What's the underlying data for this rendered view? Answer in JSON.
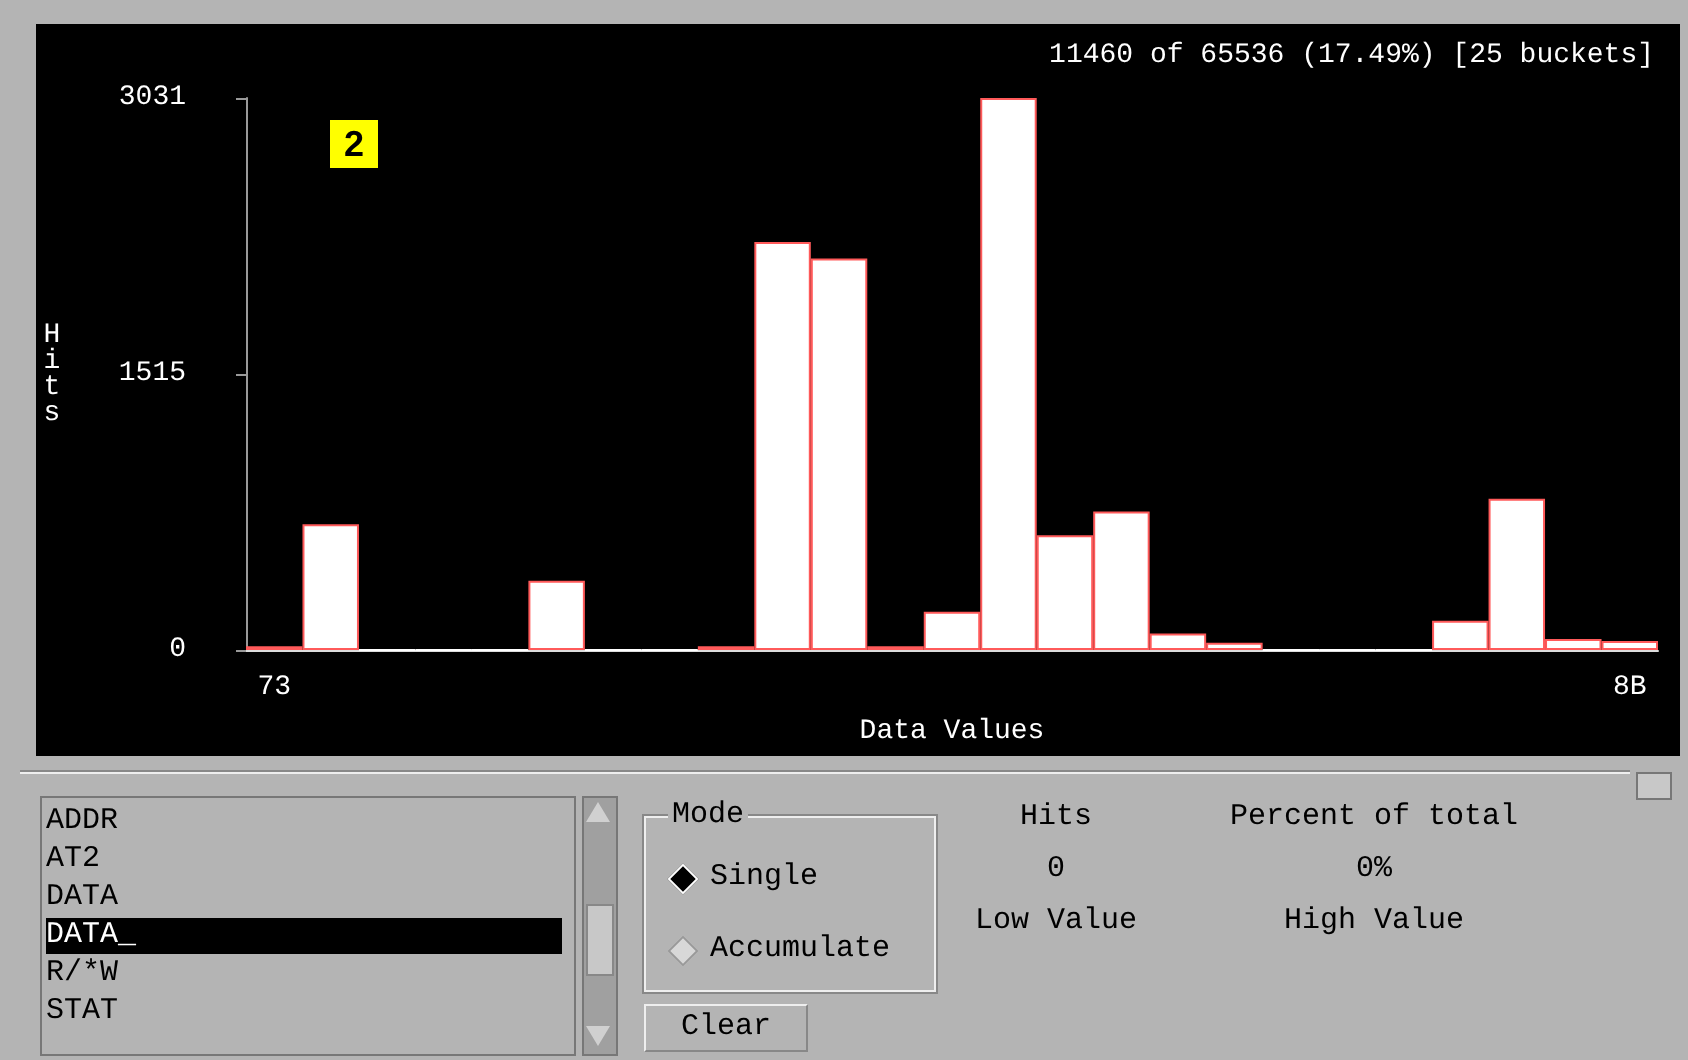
{
  "chart_data": [
    {
      "type": "bar",
      "title": "11460 of 65536 (17.49%) [25 buckets]",
      "xlabel": "Data Values",
      "ylabel": "Hits",
      "categories": [
        "73",
        null,
        null,
        null,
        null,
        null,
        null,
        null,
        null,
        null,
        null,
        null,
        null,
        null,
        null,
        null,
        null,
        null,
        null,
        null,
        null,
        null,
        null,
        null,
        "8B"
      ],
      "values": [
        20,
        690,
        0,
        0,
        0,
        380,
        0,
        0,
        20,
        2240,
        2150,
        20,
        210,
        3031,
        630,
        760,
        90,
        40,
        0,
        0,
        0,
        160,
        830,
        60,
        50
      ],
      "color": "#ffffff",
      "ylim": [
        0,
        3031
      ],
      "yticks": [
        0,
        1515,
        3031
      ],
      "grid": false,
      "annotations": [
        "2"
      ]
    },
    {
      "type": "other",
      "annotations": [
        "ADDR",
        "AT2",
        "DATA",
        "DATA_",
        "R/*W",
        "STAT",
        "Mode",
        "Single",
        "Accumulate",
        "Clear",
        "Hits",
        "Percent of total",
        "0",
        "0%",
        "Low Value",
        "High Value"
      ]
    }
  ]
}
